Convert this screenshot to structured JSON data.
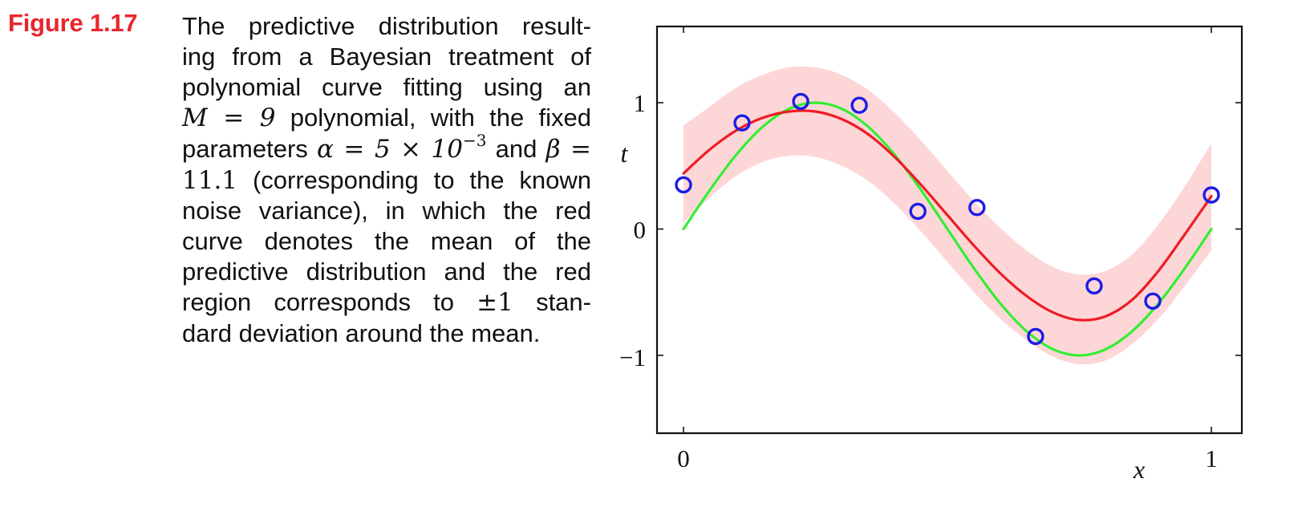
{
  "figure": {
    "label": "Figure 1.17",
    "caption": {
      "line1": "The predictive distribution result-",
      "line2": "ing from a Bayesian treatment of",
      "line3": "polynomial curve fitting using an",
      "line4_math": "M = 9",
      "line4_rest": "polynomial, with the fixed",
      "line5_a": "parameters",
      "line5_alpha": "α = 5 × 10",
      "line5_exp": "−3",
      "line5_and": "and",
      "line5_beta": "β =",
      "line6_math": "11.1",
      "line6_rest": "(corresponding to the known",
      "line7": "noise variance), in which the red",
      "line8": "curve denotes the mean of the",
      "line9": "predictive distribution and the red",
      "line10_a": "region corresponds to",
      "line10_pm": "±1",
      "line10_b": "stan-",
      "line11": "dard deviation around the mean."
    },
    "colors": {
      "label": "#e8262d",
      "band": "#fdd7d7",
      "mean_curve": "#ee1c25",
      "true_curve": "#33ee33",
      "points": "#1c1ce6"
    }
  },
  "chart_data": {
    "type": "line",
    "xlabel": "x",
    "ylabel": "t",
    "xlim": [
      -0.05,
      1.05
    ],
    "ylim": [
      -1.6,
      1.6
    ],
    "xticks": [
      "0",
      "1"
    ],
    "yticks": [
      "1",
      "0",
      "−1"
    ],
    "grid": false,
    "series": [
      {
        "style": "band",
        "x": [
          0,
          0.05,
          0.1,
          0.15,
          0.2,
          0.25,
          0.3,
          0.35,
          0.4,
          0.45,
          0.5,
          0.55,
          0.6,
          0.65,
          0.7,
          0.75,
          0.8,
          0.85,
          0.9,
          0.95,
          1
        ],
        "lower": [
          0.05,
          0.25,
          0.42,
          0.53,
          0.58,
          0.57,
          0.5,
          0.38,
          0.2,
          -0.02,
          -0.26,
          -0.5,
          -0.71,
          -0.88,
          -1.01,
          -1.07,
          -1.04,
          -0.91,
          -0.71,
          -0.45,
          -0.17
        ],
        "upper": [
          0.82,
          0.97,
          1.12,
          1.22,
          1.28,
          1.28,
          1.22,
          1.1,
          0.92,
          0.7,
          0.46,
          0.22,
          0.01,
          -0.17,
          -0.3,
          -0.36,
          -0.33,
          -0.2,
          0.04,
          0.34,
          0.68
        ]
      },
      {
        "style": "mean",
        "x": [
          0,
          0.05,
          0.1,
          0.15,
          0.2,
          0.25,
          0.3,
          0.35,
          0.4,
          0.45,
          0.5,
          0.55,
          0.6,
          0.65,
          0.7,
          0.75,
          0.8,
          0.85,
          0.9,
          0.95,
          1
        ],
        "y": [
          0.44,
          0.63,
          0.78,
          0.88,
          0.93,
          0.93,
          0.87,
          0.75,
          0.57,
          0.35,
          0.11,
          -0.13,
          -0.35,
          -0.53,
          -0.66,
          -0.72,
          -0.69,
          -0.56,
          -0.33,
          -0.04,
          0.26
        ]
      },
      {
        "style": "true",
        "x": [
          0,
          0.05,
          0.1,
          0.15,
          0.2,
          0.25,
          0.3,
          0.35,
          0.4,
          0.45,
          0.5,
          0.55,
          0.6,
          0.65,
          0.7,
          0.75,
          0.8,
          0.85,
          0.9,
          0.95,
          1
        ],
        "y": [
          0,
          0.309,
          0.588,
          0.809,
          0.951,
          1,
          0.951,
          0.809,
          0.588,
          0.309,
          0,
          -0.309,
          -0.588,
          -0.809,
          -0.951,
          -1,
          -0.951,
          -0.809,
          -0.588,
          -0.309,
          0
        ]
      },
      {
        "style": "points",
        "x": [
          0,
          0.111,
          0.222,
          0.333,
          0.444,
          0.556,
          0.667,
          0.778,
          0.889,
          1
        ],
        "y": [
          0.35,
          0.84,
          1.01,
          0.98,
          0.14,
          0.17,
          -0.85,
          -0.45,
          -0.57,
          0.27
        ]
      }
    ]
  }
}
